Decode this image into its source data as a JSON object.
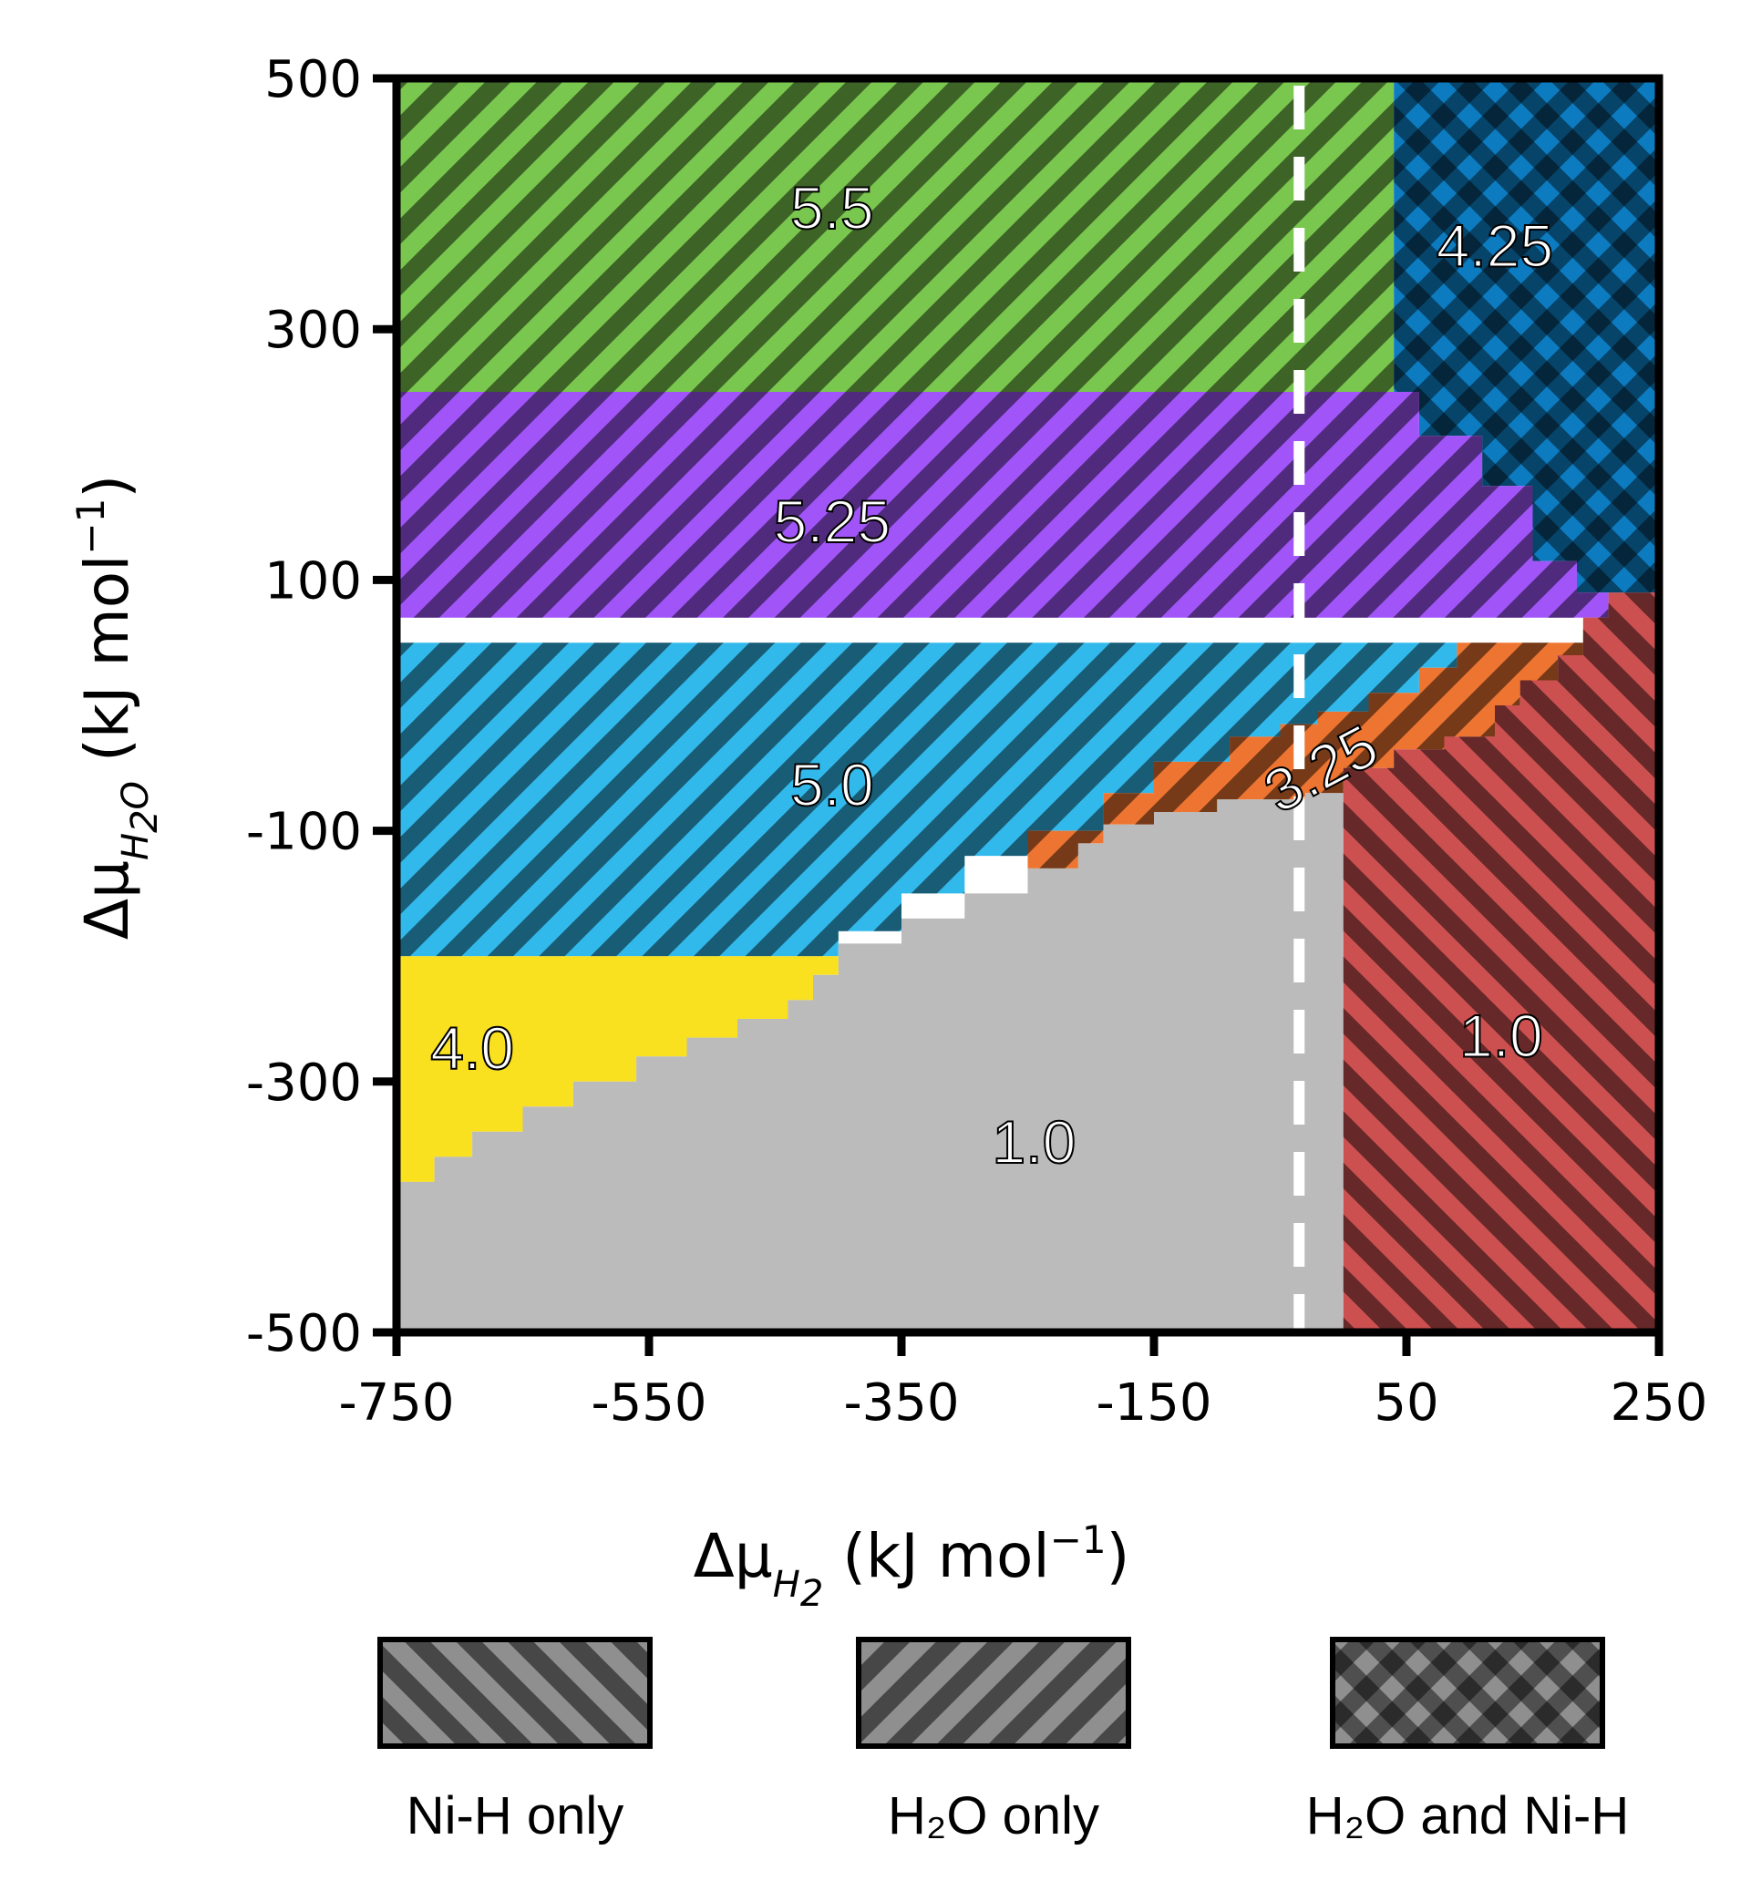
{
  "chart_data": {
    "type": "heatmap",
    "title": "",
    "xlabel": {
      "prefix": "Δμ",
      "sub": "H",
      "sub2": "2",
      "unit": " (kJ mol",
      "exp": "−1",
      "close": ")"
    },
    "ylabel": {
      "prefix": "Δμ",
      "sub": "H",
      "sub2": "2",
      "sub3": "O",
      "unit": " (kJ mol",
      "exp": "−1",
      "close": ")"
    },
    "xlim": [
      -750,
      250
    ],
    "ylim": [
      -500,
      500
    ],
    "x_ticks": [
      -750,
      -550,
      -350,
      -150,
      50,
      250
    ],
    "x_tick_labels": [
      "-750",
      "-550",
      "-350",
      "-150",
      "50",
      "250"
    ],
    "y_ticks": [
      -500,
      -300,
      -100,
      100,
      300,
      500
    ],
    "y_tick_labels": [
      "-500",
      "-300",
      "-100",
      "100",
      "300",
      "500"
    ],
    "reference_line": {
      "x": -35,
      "style": "dashed",
      "color": "#ffffff"
    },
    "regions": [
      {
        "label": "5.5",
        "color": "#7ac74f",
        "pattern": "H2O only",
        "label_at": [
          -405,
          380
        ],
        "polygon": [
          [
            -750,
            500
          ],
          [
            40,
            500
          ],
          [
            40,
            250
          ],
          [
            -750,
            250
          ]
        ]
      },
      {
        "label": "4.25",
        "color": "#0c7bc0",
        "pattern": "H2O and Ni-H",
        "label_at": [
          120,
          350
        ],
        "polygon": [
          [
            40,
            500
          ],
          [
            250,
            500
          ],
          [
            250,
            90
          ],
          [
            185,
            90
          ],
          [
            185,
            115
          ],
          [
            150,
            115
          ],
          [
            150,
            175
          ],
          [
            110,
            175
          ],
          [
            110,
            215
          ],
          [
            60,
            215
          ],
          [
            60,
            250
          ],
          [
            40,
            250
          ]
        ]
      },
      {
        "label": "5.25",
        "color": "#a155f9",
        "pattern": "H2O only",
        "label_at": [
          -405,
          130
        ],
        "polygon": [
          [
            -750,
            250
          ],
          [
            60,
            250
          ],
          [
            60,
            215
          ],
          [
            110,
            215
          ],
          [
            110,
            175
          ],
          [
            150,
            175
          ],
          [
            150,
            115
          ],
          [
            185,
            115
          ],
          [
            185,
            90
          ],
          [
            210,
            90
          ],
          [
            210,
            70
          ],
          [
            -750,
            70
          ],
          [
            -750,
            250
          ]
        ]
      },
      {
        "label": "5.0",
        "color": "#32b9ec",
        "pattern": "H2O only",
        "label_at": [
          -405,
          -80
        ],
        "polygon": [
          [
            -750,
            50
          ],
          [
            90,
            50
          ],
          [
            90,
            30
          ],
          [
            60,
            30
          ],
          [
            60,
            10
          ],
          [
            20,
            10
          ],
          [
            20,
            -5
          ],
          [
            -20,
            -5
          ],
          [
            -20,
            -15
          ],
          [
            -50,
            -15
          ],
          [
            -50,
            -25
          ],
          [
            -90,
            -25
          ],
          [
            -90,
            -45
          ],
          [
            -150,
            -45
          ],
          [
            -150,
            -70
          ],
          [
            -190,
            -70
          ],
          [
            -190,
            -100
          ],
          [
            -250,
            -100
          ],
          [
            -250,
            -120
          ],
          [
            -300,
            -120
          ],
          [
            -300,
            -150
          ],
          [
            -350,
            -150
          ],
          [
            -350,
            -180
          ],
          [
            -400,
            -180
          ],
          [
            -400,
            -200
          ],
          [
            -750,
            -200
          ]
        ]
      },
      {
        "label": "3.25",
        "color": "#ed7531",
        "pattern": "H2O only",
        "label_at": [
          -10,
          -65
        ],
        "polygon": [
          [
            90,
            50
          ],
          [
            230,
            50
          ],
          [
            230,
            60
          ],
          [
            210,
            60
          ],
          [
            210,
            70
          ],
          [
            190,
            70
          ],
          [
            190,
            40
          ],
          [
            170,
            40
          ],
          [
            170,
            20
          ],
          [
            140,
            20
          ],
          [
            140,
            0
          ],
          [
            120,
            0
          ],
          [
            120,
            -25
          ],
          [
            80,
            -25
          ],
          [
            80,
            -35
          ],
          [
            40,
            -35
          ],
          [
            40,
            -50
          ],
          [
            0,
            -50
          ],
          [
            0,
            -70
          ],
          [
            -30,
            -70
          ],
          [
            -30,
            -75
          ],
          [
            -100,
            -75
          ],
          [
            -100,
            -85
          ],
          [
            -150,
            -85
          ],
          [
            -150,
            -95
          ],
          [
            -190,
            -95
          ],
          [
            -190,
            -110
          ],
          [
            -210,
            -110
          ],
          [
            -210,
            -130
          ],
          [
            -250,
            -130
          ],
          [
            -250,
            -100
          ],
          [
            -190,
            -100
          ],
          [
            -190,
            -70
          ],
          [
            -150,
            -70
          ],
          [
            -150,
            -45
          ],
          [
            -90,
            -45
          ],
          [
            -90,
            -25
          ],
          [
            -50,
            -25
          ],
          [
            -50,
            -15
          ],
          [
            -20,
            -15
          ],
          [
            -20,
            -5
          ],
          [
            20,
            -5
          ],
          [
            20,
            10
          ],
          [
            60,
            10
          ],
          [
            60,
            30
          ],
          [
            90,
            30
          ]
        ]
      },
      {
        "label": "4.0",
        "color": "#f9e120",
        "pattern": "none",
        "label_at": [
          -690,
          -290
        ],
        "polygon": [
          [
            -750,
            -200
          ],
          [
            -400,
            -200
          ],
          [
            -400,
            -215
          ],
          [
            -420,
            -215
          ],
          [
            -420,
            -235
          ],
          [
            -440,
            -235
          ],
          [
            -440,
            -250
          ],
          [
            -480,
            -250
          ],
          [
            -480,
            -265
          ],
          [
            -520,
            -265
          ],
          [
            -520,
            -280
          ],
          [
            -560,
            -280
          ],
          [
            -560,
            -300
          ],
          [
            -610,
            -300
          ],
          [
            -610,
            -320
          ],
          [
            -650,
            -320
          ],
          [
            -650,
            -340
          ],
          [
            -690,
            -340
          ],
          [
            -690,
            -360
          ],
          [
            -720,
            -360
          ],
          [
            -720,
            -380
          ],
          [
            -750,
            -380
          ]
        ]
      },
      {
        "label": "1.0",
        "color": "#bbbbbb",
        "pattern": "none",
        "label_at": [
          -245,
          -365
        ],
        "polygon": [
          [
            -750,
            -500
          ],
          [
            0,
            -500
          ],
          [
            0,
            -70
          ],
          [
            -30,
            -70
          ],
          [
            -30,
            -75
          ],
          [
            -100,
            -75
          ],
          [
            -100,
            -85
          ],
          [
            -150,
            -85
          ],
          [
            -150,
            -95
          ],
          [
            -190,
            -95
          ],
          [
            -190,
            -110
          ],
          [
            -210,
            -110
          ],
          [
            -210,
            -130
          ],
          [
            -250,
            -130
          ],
          [
            -250,
            -150
          ],
          [
            -300,
            -150
          ],
          [
            -300,
            -170
          ],
          [
            -350,
            -170
          ],
          [
            -350,
            -190
          ],
          [
            -400,
            -190
          ],
          [
            -400,
            -215
          ],
          [
            -420,
            -215
          ],
          [
            -420,
            -235
          ],
          [
            -440,
            -235
          ],
          [
            -440,
            -250
          ],
          [
            -480,
            -250
          ],
          [
            -480,
            -265
          ],
          [
            -520,
            -265
          ],
          [
            -520,
            -280
          ],
          [
            -560,
            -280
          ],
          [
            -560,
            -300
          ],
          [
            -610,
            -300
          ],
          [
            -610,
            -320
          ],
          [
            -650,
            -320
          ],
          [
            -650,
            -340
          ],
          [
            -690,
            -340
          ],
          [
            -690,
            -360
          ],
          [
            -720,
            -360
          ],
          [
            -720,
            -380
          ],
          [
            -750,
            -380
          ]
        ]
      },
      {
        "label": "1.0",
        "color": "#cc5050",
        "pattern": "Ni-H only",
        "label_at": [
          125,
          -280
        ],
        "polygon": [
          [
            0,
            -500
          ],
          [
            250,
            -500
          ],
          [
            250,
            90
          ],
          [
            210,
            90
          ],
          [
            210,
            70
          ],
          [
            190,
            70
          ],
          [
            190,
            40
          ],
          [
            170,
            40
          ],
          [
            170,
            20
          ],
          [
            140,
            20
          ],
          [
            140,
            0
          ],
          [
            120,
            0
          ],
          [
            120,
            -25
          ],
          [
            80,
            -25
          ],
          [
            80,
            -35
          ],
          [
            40,
            -35
          ],
          [
            40,
            -50
          ],
          [
            0,
            -50
          ]
        ]
      }
    ],
    "legend": {
      "placement": "bottom",
      "items": [
        {
          "pattern": "Ni-H only",
          "label": "Ni-H only"
        },
        {
          "pattern": "H2O only",
          "label": "H₂O only"
        },
        {
          "pattern": "H2O and Ni-H",
          "label": "H₂O and Ni-H"
        }
      ]
    }
  }
}
